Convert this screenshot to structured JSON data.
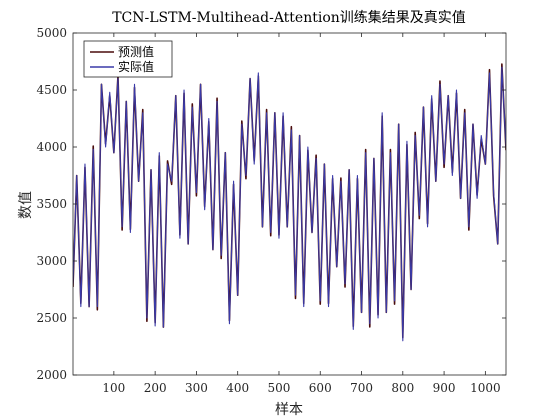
{
  "chart_data": {
    "type": "line",
    "title": "TCN-LSTM-Multihead-Attention训练集结果及真实值",
    "xlabel": "样本",
    "ylabel": "数值",
    "xlim": [
      1,
      1050
    ],
    "ylim": [
      2000,
      5000
    ],
    "xticks": [
      100,
      200,
      300,
      400,
      500,
      600,
      700,
      800,
      900,
      1000
    ],
    "yticks": [
      2000,
      2500,
      3000,
      3500,
      4000,
      4500,
      5000
    ],
    "legend_position": "top-left",
    "grid": false,
    "series": [
      {
        "name": "预测值",
        "color": "#4a0c0c"
      },
      {
        "name": "实际值",
        "color": "#3a3aa8"
      }
    ],
    "x": [
      1,
      10,
      20,
      30,
      40,
      50,
      60,
      70,
      80,
      90,
      100,
      110,
      120,
      130,
      140,
      150,
      160,
      170,
      180,
      190,
      200,
      210,
      220,
      230,
      240,
      250,
      260,
      270,
      280,
      290,
      300,
      310,
      320,
      330,
      340,
      350,
      360,
      370,
      380,
      390,
      400,
      410,
      420,
      430,
      440,
      450,
      460,
      470,
      480,
      490,
      500,
      510,
      520,
      530,
      540,
      550,
      560,
      570,
      580,
      590,
      600,
      610,
      620,
      630,
      640,
      650,
      660,
      670,
      680,
      690,
      700,
      710,
      720,
      730,
      740,
      750,
      760,
      770,
      780,
      790,
      800,
      810,
      820,
      830,
      840,
      850,
      860,
      870,
      880,
      890,
      900,
      910,
      920,
      930,
      940,
      950,
      960,
      970,
      980,
      990,
      1000,
      1010,
      1020,
      1030,
      1040,
      1050
    ],
    "values": [
      2800,
      3750,
      2600,
      3850,
      2600,
      3980,
      2600,
      4550,
      4000,
      4480,
      3950,
      4600,
      3300,
      4400,
      3250,
      4550,
      3700,
      4300,
      2500,
      3800,
      2430,
      3950,
      2420,
      3850,
      3700,
      4450,
      3200,
      4500,
      3150,
      4350,
      3600,
      4550,
      3450,
      4250,
      3100,
      4400,
      3050,
      3950,
      2450,
      3700,
      2700,
      4200,
      3750,
      4600,
      3850,
      4650,
      3300,
      4300,
      3250,
      4300,
      3200,
      4300,
      3300,
      4150,
      2700,
      4100,
      2600,
      4000,
      3250,
      3900,
      2650,
      3850,
      2600,
      3750,
      2950,
      3700,
      2800,
      3800,
      2400,
      3750,
      2550,
      3950,
      2450,
      3900,
      2500,
      4300,
      2550,
      3950,
      2650,
      4200,
      2300,
      4050,
      2750,
      4100,
      3400,
      4350,
      3300,
      4450,
      3700,
      4550,
      3850,
      4450,
      3750,
      4500,
      3550,
      4300,
      3300,
      4200,
      3550,
      4100,
      3850,
      4650,
      3600,
      3150,
      4700,
      4000
    ]
  }
}
